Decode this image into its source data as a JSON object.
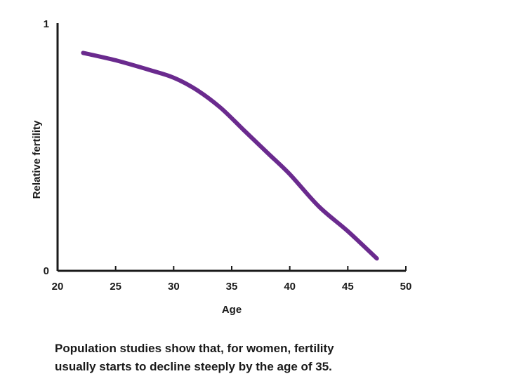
{
  "chart_data": {
    "type": "line",
    "xlabel": "Age",
    "ylabel": "Relative fertility",
    "xlim": [
      20,
      50
    ],
    "ylim": [
      0,
      1
    ],
    "x_ticks": [
      "20",
      "25",
      "30",
      "35",
      "40",
      "45",
      "50"
    ],
    "y_ticks": [
      "0",
      "1"
    ],
    "grid": false,
    "color": "#6a2a8e",
    "series": [
      {
        "x": [
          22.2,
          25,
          28,
          30,
          32,
          34,
          36,
          38,
          40,
          42.5,
          45,
          47.5
        ],
        "y": [
          0.88,
          0.85,
          0.81,
          0.78,
          0.73,
          0.66,
          0.57,
          0.48,
          0.39,
          0.26,
          0.16,
          0.05
        ]
      }
    ]
  },
  "caption": {
    "line1": "Population studies show that, for women, fertility",
    "line2": "usually starts to decline steeply by the age of 35."
  }
}
